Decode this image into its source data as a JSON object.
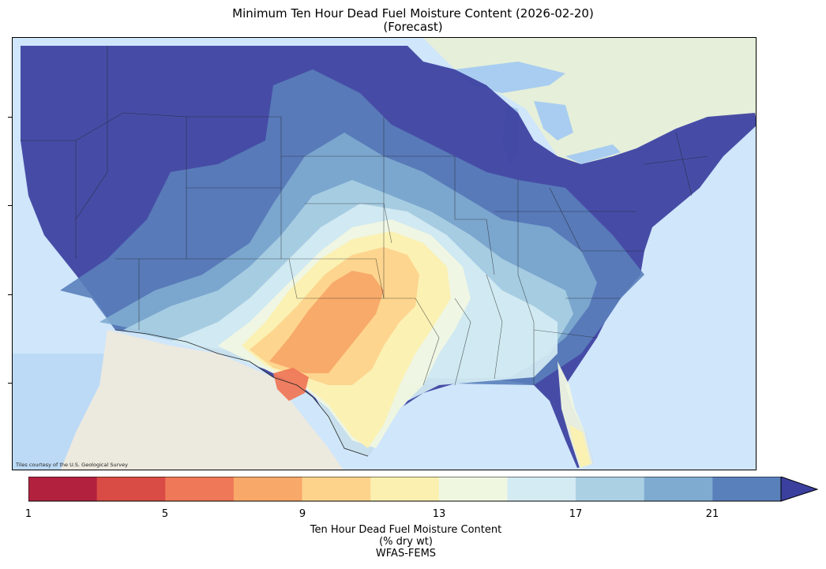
{
  "title_line1": "Minimum Ten Hour Dead Fuel Moisture Content (2026-02-20)",
  "title_line2": "(Forecast)",
  "credit": "Tiles courtesy of the U.S. Geological Survey",
  "colorbar": {
    "ticks": [
      "1",
      "5",
      "9",
      "13",
      "17",
      "21"
    ],
    "label_line1": "Ten Hour Dead Fuel Moisture Content",
    "label_line2": "(% dry wt)",
    "source": "WFAS-FEMS",
    "colors": [
      "#b2223e",
      "#d94b45",
      "#ef7858",
      "#f8a868",
      "#fdd38c",
      "#fbf0b0",
      "#f0f7e1",
      "#d4ebf3",
      "#abd0e4",
      "#7fabd0",
      "#5a80bb",
      "#3b3f9e"
    ]
  },
  "colors": {
    "ocean": "#cfe6fb",
    "land": "#f0ede4",
    "lakes": "#a9cdf0"
  }
}
